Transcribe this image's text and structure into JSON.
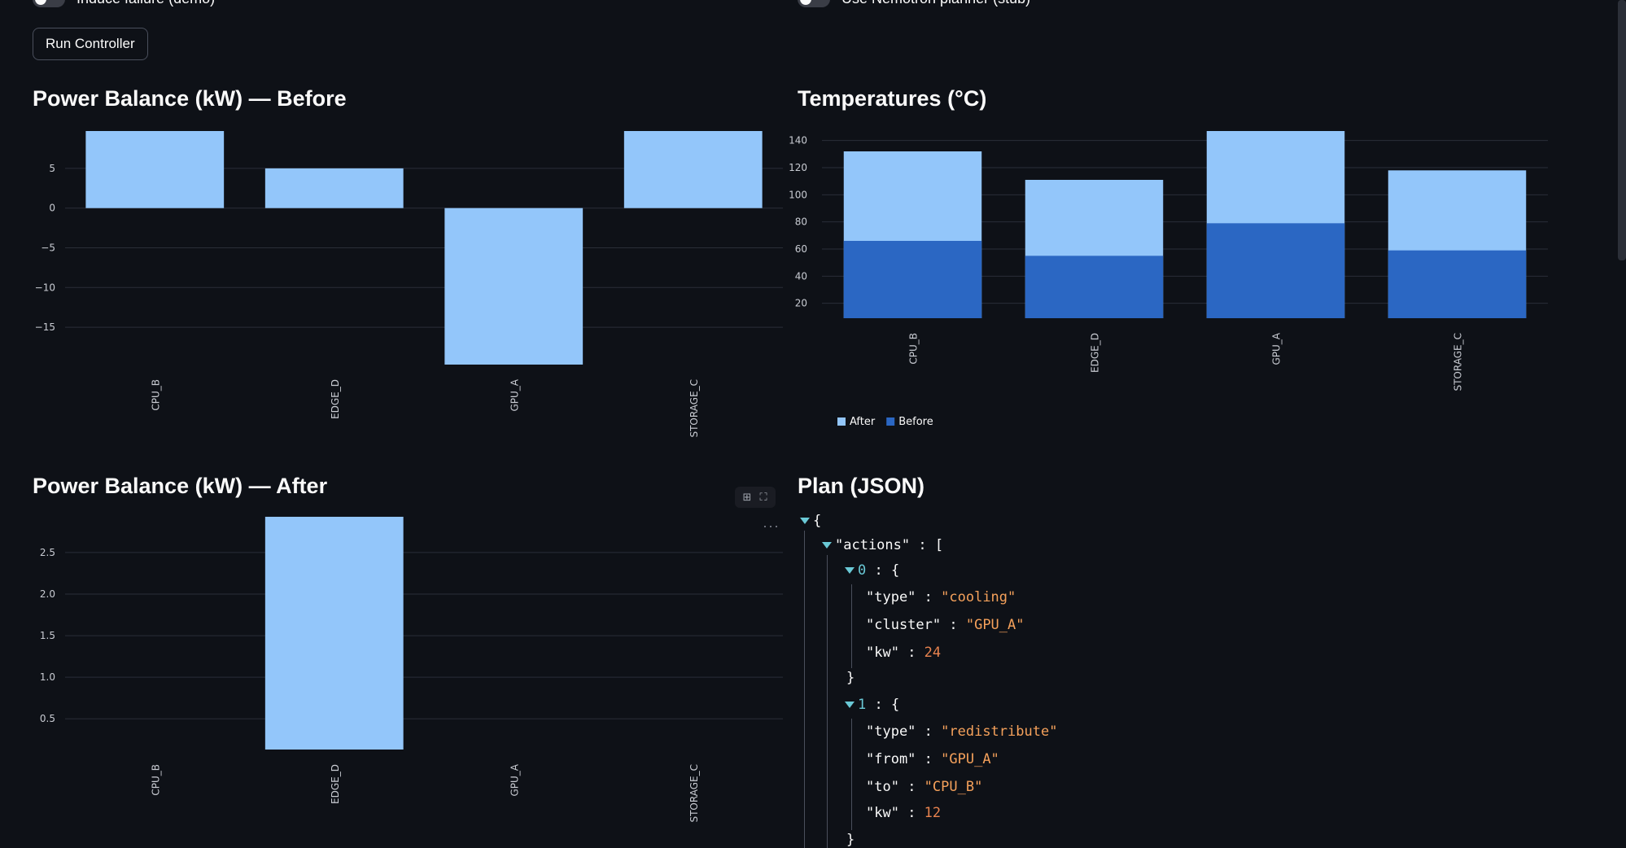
{
  "controls": {
    "induce_failure_label": "Induce failure (demo)",
    "nemotron_label": "Use Nemotron planner (stub)",
    "run_button": "Run Controller"
  },
  "sections": {
    "power_before_title": "Power Balance (kW) — Before",
    "temperatures_title": "Temperatures (°C)",
    "power_after_title": "Power Balance (kW) — After",
    "plan_title": "Plan (JSON)"
  },
  "colors": {
    "after": "#93c6fa",
    "before": "#2b67c3",
    "grid": "#2a2e38",
    "json_string": "#f5a15b",
    "json_number": "#e8834f"
  },
  "chart_data": [
    {
      "id": "power_before",
      "type": "bar",
      "categories": [
        "CPU_B",
        "EDGE_D",
        "GPU_A",
        "STORAGE_C"
      ],
      "values": [
        9.7,
        5,
        -19.7,
        9.7
      ],
      "ylim": [
        -19.7,
        9.7
      ],
      "yticks": [
        5,
        0,
        -5,
        -10,
        -15
      ],
      "ytick_labels": [
        "5",
        "0",
        "−5",
        "−10",
        "−15"
      ],
      "grid": true
    },
    {
      "id": "temperatures",
      "type": "bar",
      "stacked": false,
      "categories": [
        "CPU_B",
        "EDGE_D",
        "GPU_A",
        "STORAGE_C"
      ],
      "series": [
        {
          "name": "After",
          "values": [
            132,
            111,
            147,
            118
          ]
        },
        {
          "name": "Before",
          "values": [
            66,
            55,
            79,
            59
          ]
        }
      ],
      "ylim": [
        9,
        147
      ],
      "yticks": [
        20,
        40,
        60,
        80,
        100,
        120,
        140
      ],
      "legend": "bottom-left",
      "grid": true
    },
    {
      "id": "power_after",
      "type": "bar",
      "categories": [
        "CPU_B",
        "EDGE_D",
        "GPU_A",
        "STORAGE_C"
      ],
      "values": [
        null,
        2.93,
        null,
        null
      ],
      "bar_base": 0.13,
      "ylim": [
        0.13,
        2.93
      ],
      "yticks": [
        0.5,
        1.0,
        1.5,
        2.0,
        2.5
      ],
      "ytick_labels": [
        "0.5",
        "1.0",
        "1.5",
        "2.0",
        "2.5"
      ],
      "grid": true
    }
  ],
  "plan": {
    "actions_key": "\"actions\"",
    "actions": [
      {
        "index": "0",
        "fields": [
          {
            "key": "\"type\"",
            "value": "\"cooling\"",
            "kind": "string"
          },
          {
            "key": "\"cluster\"",
            "value": "\"GPU_A\"",
            "kind": "string"
          },
          {
            "key": "\"kw\"",
            "value": "24",
            "kind": "number"
          }
        ]
      },
      {
        "index": "1",
        "fields": [
          {
            "key": "\"type\"",
            "value": "\"redistribute\"",
            "kind": "string"
          },
          {
            "key": "\"from\"",
            "value": "\"GPU_A\"",
            "kind": "string"
          },
          {
            "key": "\"to\"",
            "value": "\"CPU_B\"",
            "kind": "string"
          },
          {
            "key": "\"kw\"",
            "value": "12",
            "kind": "number"
          }
        ]
      }
    ]
  }
}
